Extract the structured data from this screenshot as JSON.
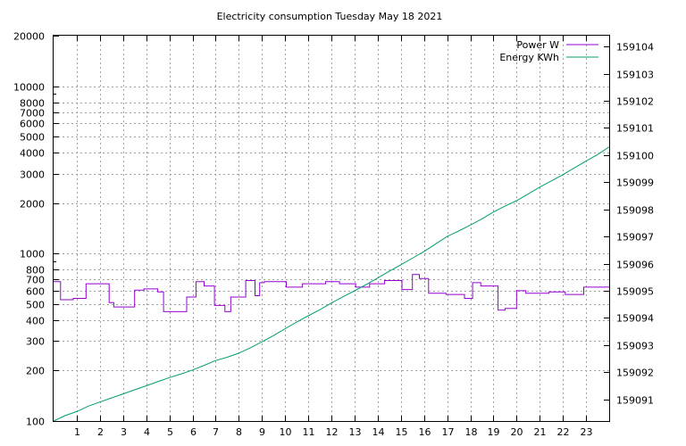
{
  "chart_data": {
    "type": "line",
    "title": "Electricity consumption Tuesday May 18 2021",
    "xlabel": "",
    "ylabel": "",
    "y2label": "",
    "grid": true,
    "legend_position": "top-right",
    "xlim": [
      0,
      24
    ],
    "x_ticks": [
      1,
      2,
      3,
      4,
      5,
      6,
      7,
      8,
      9,
      10,
      11,
      12,
      13,
      14,
      15,
      16,
      17,
      18,
      19,
      20,
      21,
      22,
      23
    ],
    "ylim": [
      100,
      20000
    ],
    "y_scale": "log",
    "y_ticks": [
      100,
      200,
      300,
      400,
      500,
      600,
      700,
      800,
      1000,
      2000,
      3000,
      4000,
      5000,
      6000,
      7000,
      8000,
      10000,
      20000
    ],
    "y2lim": [
      159090.2,
      159104.4
    ],
    "y2_ticks": [
      159091,
      159092,
      159093,
      159094,
      159095,
      159096,
      159097,
      159098,
      159099,
      159100,
      159101,
      159102,
      159103,
      159104
    ],
    "series": [
      {
        "name": "Power W",
        "color": "#9400d3",
        "axis": "y",
        "step": true,
        "x": [
          0,
          0.3,
          0.85,
          1.4,
          2.4,
          2.6,
          3.5,
          3.9,
          4.5,
          4.75,
          5.75,
          6.15,
          6.5,
          6.95,
          7.4,
          7.65,
          8.3,
          8.7,
          8.9,
          9.1,
          9.6,
          10.05,
          10.75,
          11.75,
          12.35,
          13.05,
          13.65,
          14.3,
          15.05,
          15.5,
          15.8,
          16.2,
          16.95,
          17.75,
          18.1,
          18.45,
          19.2,
          19.5,
          20.0,
          20.4,
          21.4,
          22.1,
          22.9,
          24
        ],
        "y": [
          680,
          530,
          540,
          660,
          510,
          480,
          605,
          615,
          590,
          450,
          550,
          680,
          640,
          490,
          450,
          550,
          690,
          560,
          670,
          680,
          680,
          630,
          660,
          680,
          660,
          630,
          660,
          690,
          610,
          750,
          710,
          580,
          570,
          540,
          670,
          640,
          460,
          470,
          600,
          580,
          590,
          570,
          630,
          630
        ]
      },
      {
        "name": "Energy KWh",
        "color": "#009e73",
        "axis": "y2",
        "step": false,
        "x": [
          0,
          0.5,
          1,
          1.5,
          2,
          2.5,
          3,
          3.5,
          4,
          4.5,
          5,
          5.5,
          6,
          6.5,
          7,
          7.5,
          8,
          8.5,
          9,
          9.5,
          10,
          10.5,
          11,
          11.5,
          12,
          12.5,
          13,
          13.5,
          14,
          14.5,
          15,
          15.5,
          16,
          16.5,
          17,
          17.5,
          18,
          18.5,
          19,
          19.5,
          20,
          20.5,
          21,
          21.5,
          22,
          22.5,
          23,
          23.5,
          24
        ],
        "y": [
          159090.2,
          159090.4,
          159090.55,
          159090.75,
          159090.9,
          159091.05,
          159091.2,
          159091.35,
          159091.5,
          159091.65,
          159091.8,
          159091.93,
          159092.08,
          159092.25,
          159092.43,
          159092.55,
          159092.7,
          159092.9,
          159093.12,
          159093.35,
          159093.6,
          159093.85,
          159094.08,
          159094.3,
          159094.55,
          159094.78,
          159095.0,
          159095.23,
          159095.47,
          159095.72,
          159095.96,
          159096.2,
          159096.45,
          159096.72,
          159097.0,
          159097.2,
          159097.42,
          159097.65,
          159097.9,
          159098.12,
          159098.32,
          159098.57,
          159098.82,
          159099.05,
          159099.28,
          159099.53,
          159099.78,
          159100.02,
          159100.3
        ]
      }
    ]
  }
}
